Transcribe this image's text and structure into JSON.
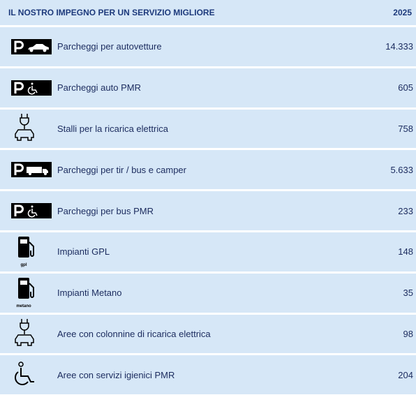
{
  "table": {
    "header": [
      "IL NOSTRO IMPEGNO PER UN SERVIZIO MIGLIORE",
      "2025"
    ],
    "rows": [
      {
        "label": "Parcheggi per autovetture",
        "value": "14.333"
      },
      {
        "label": "Parcheggi auto PMR",
        "value": "605"
      },
      {
        "label": "Stalli per la ricarica elettrica",
        "value": "758"
      },
      {
        "label": "Parcheggi per tir / bus e camper",
        "value": "5.633"
      },
      {
        "label": "Parcheggi per bus PMR",
        "value": "233"
      },
      {
        "label": "Impianti GPL",
        "value": "148",
        "icon_text": "gpl"
      },
      {
        "label": "Impianti Metano",
        "value": "35",
        "icon_text": "metano"
      },
      {
        "label": "Aree con colonnine di ricarica elettrica",
        "value": "98"
      },
      {
        "label": "Aree con servizi igienici PMR",
        "value": "204"
      }
    ]
  }
}
